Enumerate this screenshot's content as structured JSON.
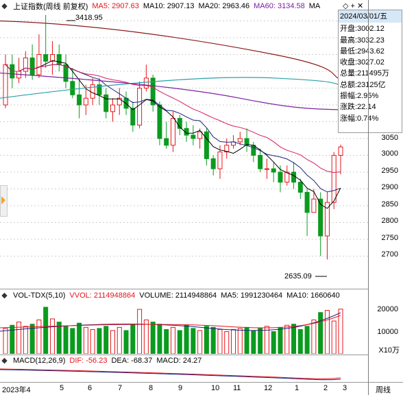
{
  "header": {
    "title": "上证指数(周线 前复权)",
    "ma5": "MA5: 2907.63",
    "ma10": "MA10: 2907.13",
    "ma20": "MA20: 2963.46",
    "ma60": "MA60: 3134.58",
    "ma_more": "MA"
  },
  "annotations": {
    "high": "3418.95",
    "low": "2635.09"
  },
  "price_axis": [
    "3050",
    "3000",
    "2950",
    "2900",
    "2850",
    "2800",
    "2750",
    "2700"
  ],
  "infobox": {
    "date": "2024/03/01/五",
    "open": "开盘:3002.12",
    "high": "最高:3032.23",
    "low": "最低:2943.62",
    "close": "收盘:3027.02",
    "volume": "总量:211495万",
    "amount": "总额:23125亿",
    "amplitude": "振幅:2.95%",
    "change": "涨跌:22.14",
    "change_pct": "涨幅:0.74%"
  },
  "volume_header": {
    "title": "VOL-TDX(5,10)",
    "vvol": "VVOL: 2114948864",
    "volume": "VOLUME: 2114948864",
    "ma5": "MA5: 1991230464",
    "ma10": "MA10: 1660640"
  },
  "volume_axis": [
    "20000",
    "10000"
  ],
  "volume_unit": "X10万",
  "macd_header": {
    "title": "MACD(12,26,9)",
    "dif": "DIF: -56.23",
    "dea": "DEA: -68.37",
    "macd": "MACD: 24.27"
  },
  "x_axis": [
    "2023年4",
    "5",
    "6",
    "7",
    "8",
    "9",
    "10",
    "11",
    "12",
    "1",
    "2",
    "3"
  ],
  "period_label": "周线",
  "colors": {
    "up": "#e8141b",
    "down": "#0a9b1f",
    "ma5": "#000000",
    "ma10": "#1a237e",
    "ma20": "#d81b60",
    "ma60": "#7b1fa2",
    "ma120": "#8b1a1a",
    "ma250": "#2aa0a8"
  }
}
